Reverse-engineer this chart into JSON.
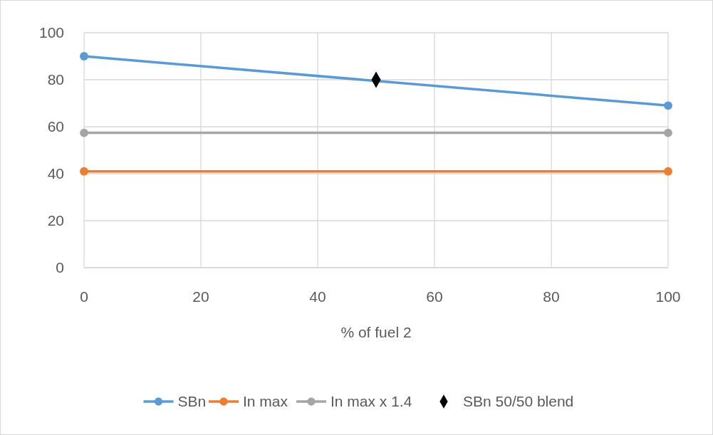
{
  "chart_data": {
    "type": "line",
    "xlabel": "% of fuel 2",
    "xlim": [
      0,
      100
    ],
    "xticks": [
      0,
      20,
      40,
      60,
      80,
      100
    ],
    "ylim": [
      0,
      100
    ],
    "yticks": [
      0,
      20,
      40,
      60,
      80,
      100
    ],
    "grid": true,
    "legend": "bottom",
    "marker": "circle",
    "series": [
      {
        "name": "SBn",
        "color": "#5b9bd5",
        "x": [
          0,
          100
        ],
        "values": [
          90,
          69
        ]
      },
      {
        "name": "In max",
        "color": "#ed7d31",
        "x": [
          0,
          100
        ],
        "values": [
          41,
          41
        ]
      },
      {
        "name": "In max x 1.4",
        "color": "#a5a5a5",
        "x": [
          0,
          100
        ],
        "values": [
          57.4,
          57.4
        ]
      },
      {
        "name": "SBn 50/50 blend",
        "type": "scatter",
        "marker": "diamond",
        "color": "#000000",
        "x": [
          50
        ],
        "values": [
          80
        ]
      }
    ]
  }
}
